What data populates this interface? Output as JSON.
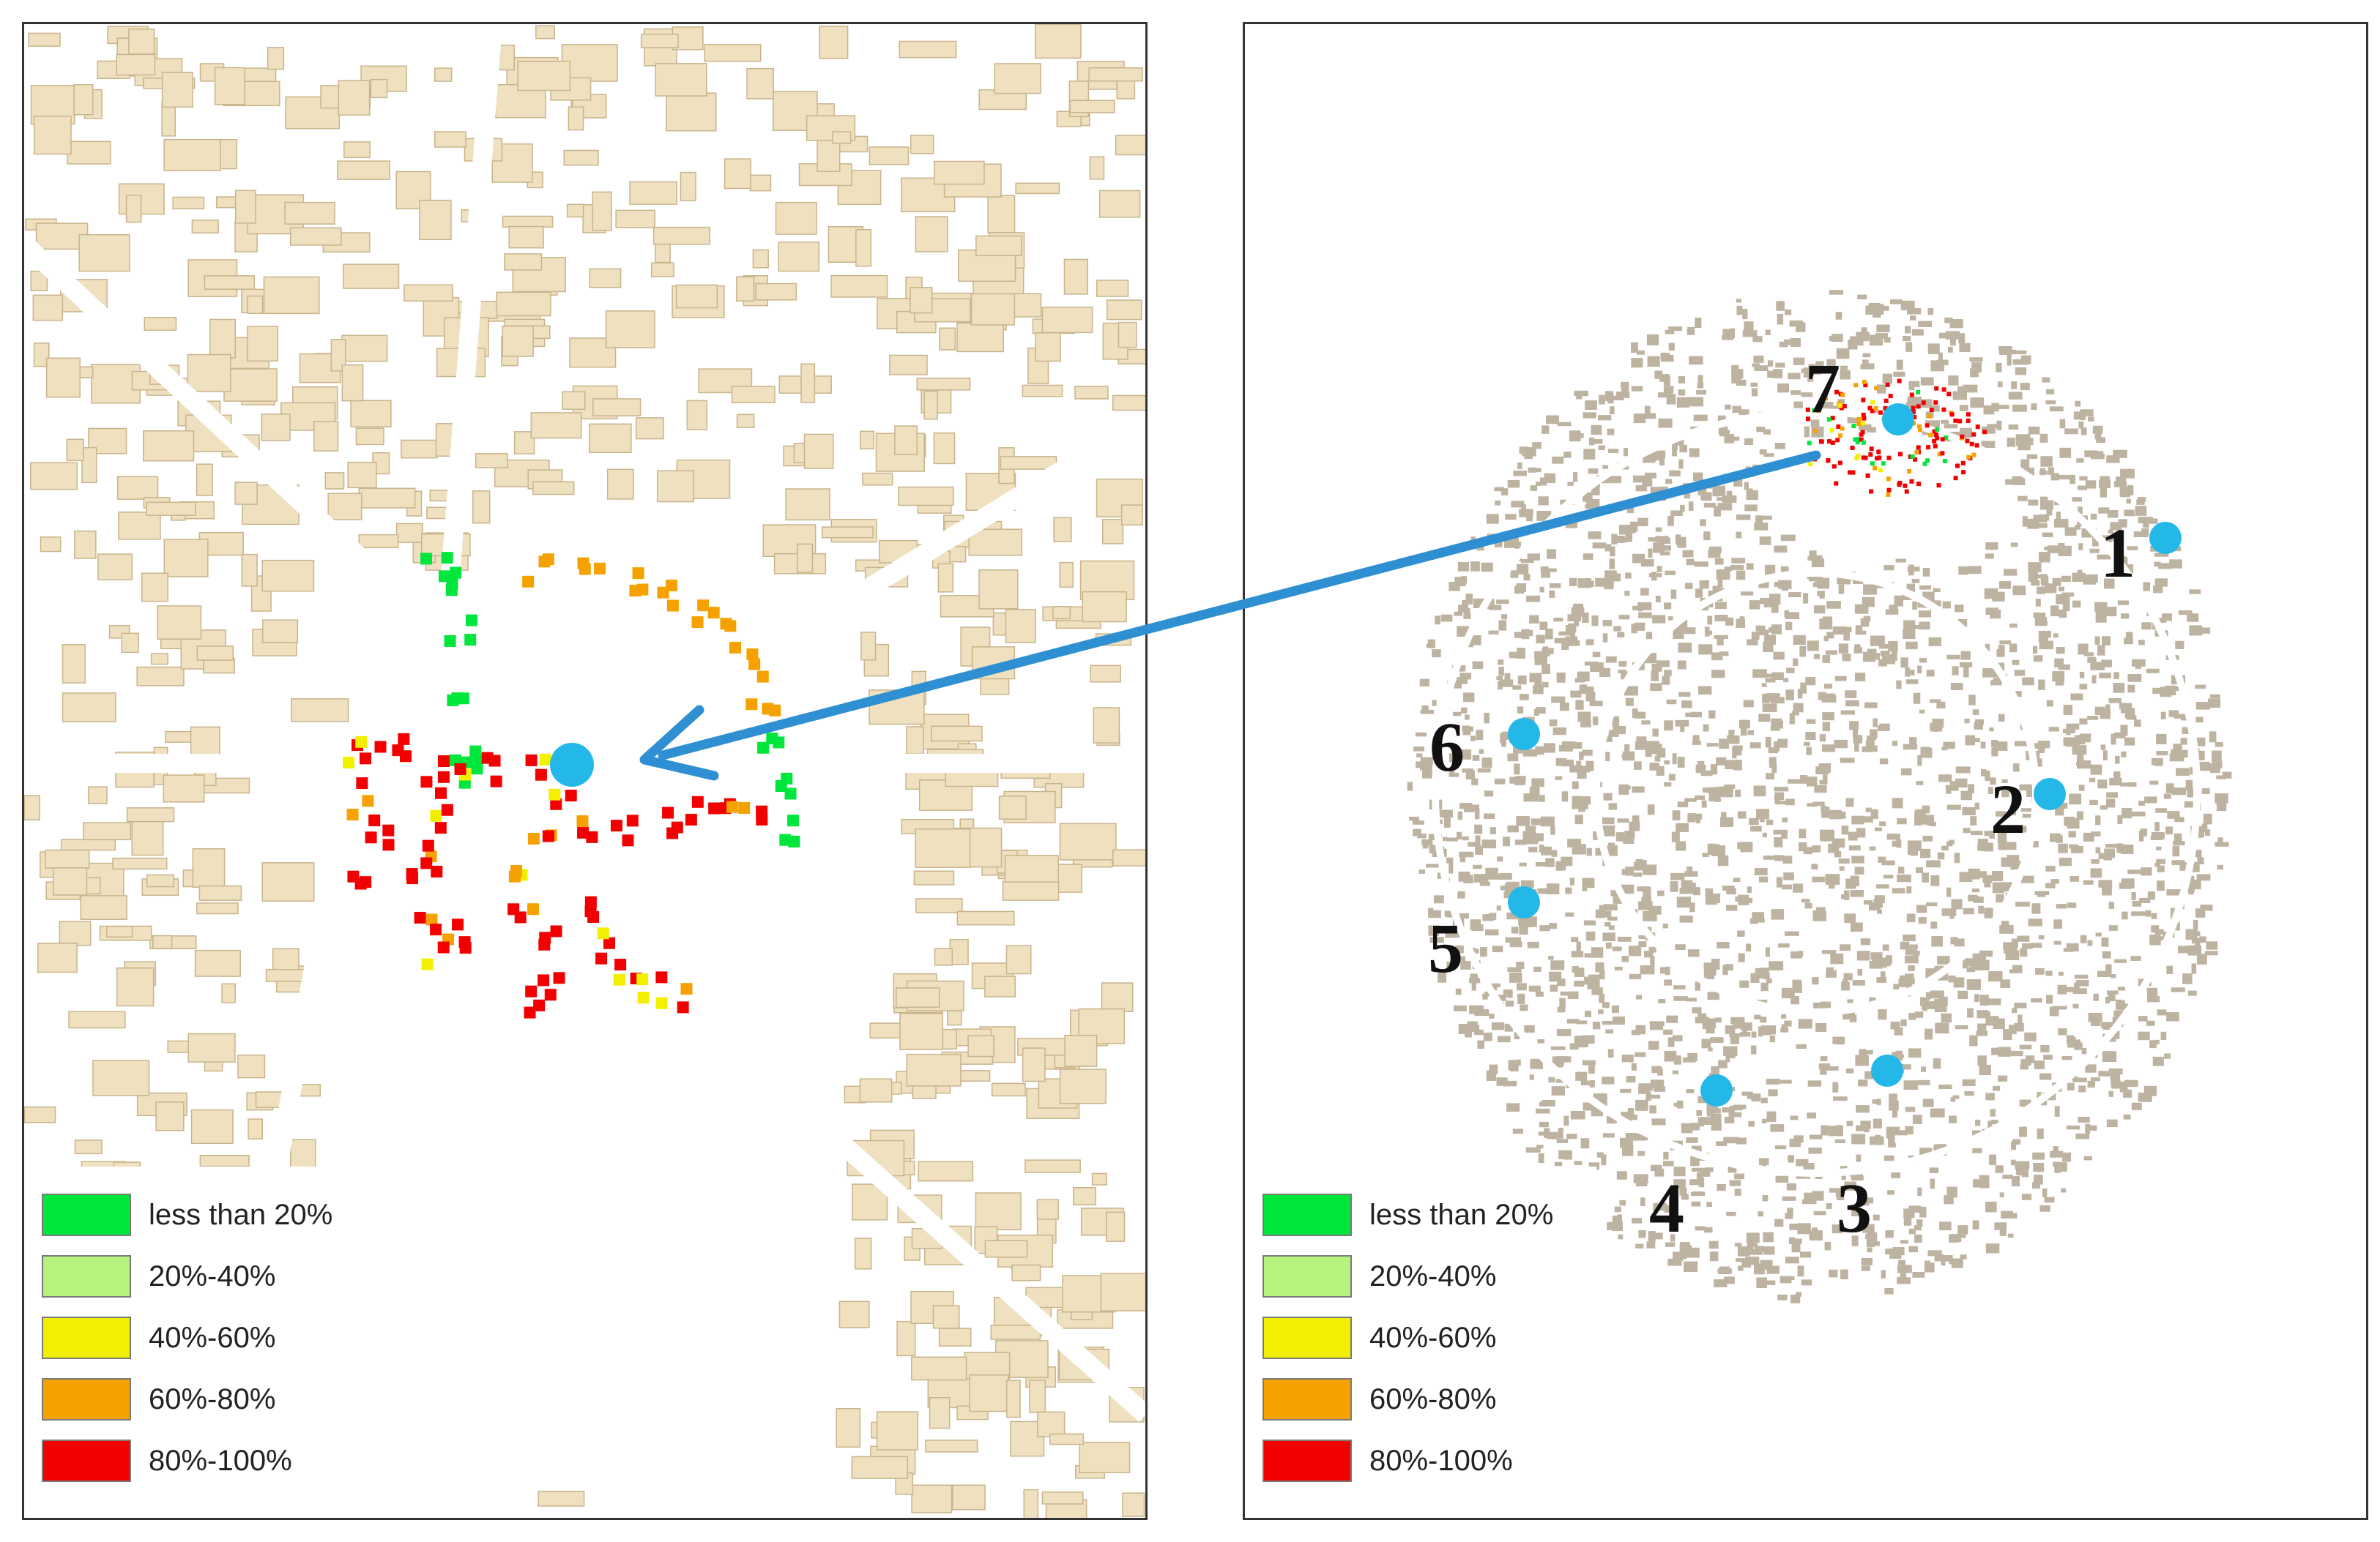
{
  "map_left": {
    "legend": [
      {
        "label": "less than 20%",
        "color": "#00e63c"
      },
      {
        "label": "20%-40%",
        "color": "#b6f27e"
      },
      {
        "label": "40%-60%",
        "color": "#f2f000"
      },
      {
        "label": "60%-80%",
        "color": "#f5a100"
      },
      {
        "label": "80%-100%",
        "color": "#f20000"
      }
    ]
  },
  "map_right": {
    "legend": [
      {
        "label": "less than 20%",
        "color": "#00e63c"
      },
      {
        "label": "20%-40%",
        "color": "#b6f27e"
      },
      {
        "label": "40%-60%",
        "color": "#f2f000"
      },
      {
        "label": "60%-80%",
        "color": "#f5a100"
      },
      {
        "label": "80%-100%",
        "color": "#f20000"
      }
    ],
    "site_labels": [
      "1",
      "2",
      "3",
      "4",
      "5",
      "6",
      "7"
    ]
  },
  "colors": {
    "building_fill": "#efe0c0",
    "building_stroke": "#c9b48c",
    "dense_fill": "#bdb3a0",
    "site_marker": "#23b8e8",
    "arrow": "#2f8fd3"
  }
}
